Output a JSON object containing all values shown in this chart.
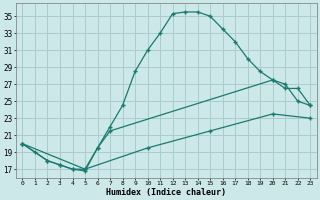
{
  "title": "",
  "xlabel": "Humidex (Indice chaleur)",
  "bg_color": "#cce8e8",
  "grid_color": "#aacccc",
  "line_color": "#1a7a6e",
  "xlim": [
    -0.5,
    23.5
  ],
  "ylim": [
    16.0,
    36.5
  ],
  "xticks": [
    0,
    1,
    2,
    3,
    4,
    5,
    6,
    7,
    8,
    9,
    10,
    11,
    12,
    13,
    14,
    15,
    16,
    17,
    18,
    19,
    20,
    21,
    22,
    23
  ],
  "yticks": [
    17,
    19,
    21,
    23,
    25,
    27,
    29,
    31,
    33,
    35
  ],
  "series1": [
    [
      0,
      20.0
    ],
    [
      1,
      19.0
    ],
    [
      2,
      18.0
    ],
    [
      3,
      17.5
    ],
    [
      4,
      17.0
    ],
    [
      5,
      17.0
    ],
    [
      6,
      19.5
    ],
    [
      7,
      22.0
    ],
    [
      8,
      24.5
    ],
    [
      9,
      28.5
    ],
    [
      10,
      31.0
    ],
    [
      11,
      33.0
    ],
    [
      12,
      35.3
    ],
    [
      13,
      35.5
    ],
    [
      14,
      35.5
    ],
    [
      15,
      35.0
    ],
    [
      16,
      33.5
    ],
    [
      17,
      32.0
    ],
    [
      18,
      30.0
    ],
    [
      19,
      28.5
    ],
    [
      20,
      27.5
    ],
    [
      21,
      27.0
    ],
    [
      22,
      25.0
    ],
    [
      23,
      24.5
    ]
  ],
  "series2": [
    [
      0,
      20.0
    ],
    [
      2,
      18.0
    ],
    [
      3,
      17.5
    ],
    [
      4,
      17.0
    ],
    [
      5,
      16.8
    ],
    [
      6,
      19.5
    ],
    [
      7,
      21.5
    ],
    [
      20,
      27.5
    ],
    [
      21,
      26.5
    ],
    [
      22,
      26.5
    ],
    [
      23,
      24.5
    ]
  ],
  "series3": [
    [
      0,
      20.0
    ],
    [
      5,
      17.0
    ],
    [
      10,
      19.5
    ],
    [
      15,
      21.5
    ],
    [
      20,
      23.5
    ],
    [
      23,
      23.0
    ]
  ]
}
